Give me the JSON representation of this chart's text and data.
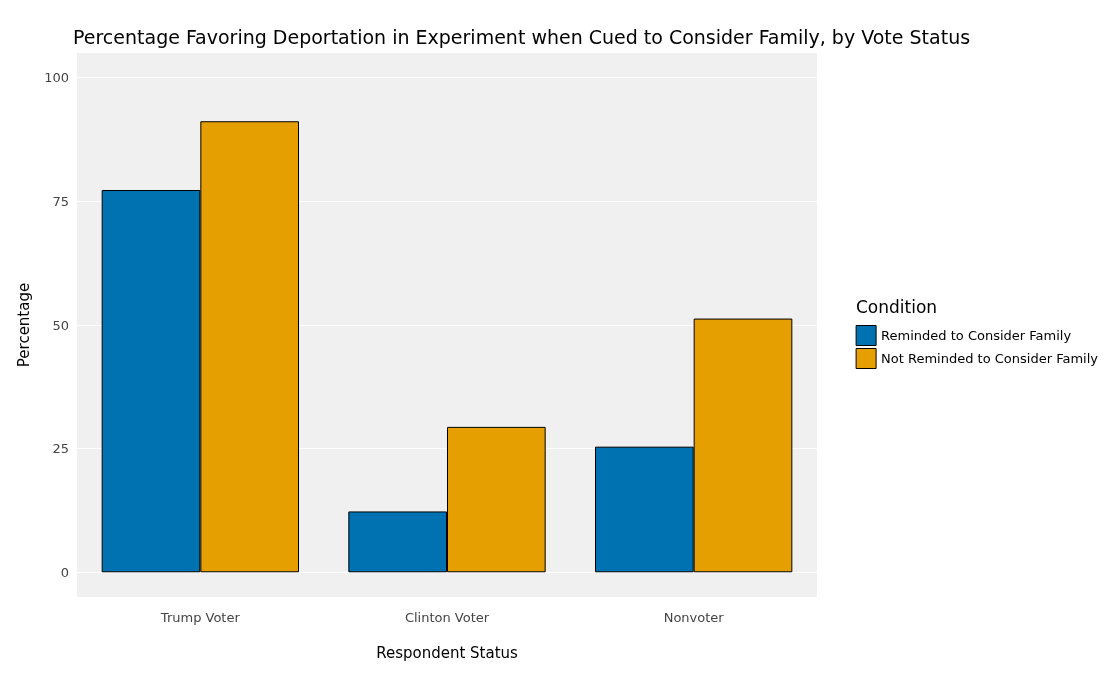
{
  "chart_data": {
    "type": "bar",
    "title": "Percentage Favoring Deportation in Experiment when Cued to Consider Family, by Vote Status",
    "xlabel": "Respondent Status",
    "ylabel": "Percentage",
    "legend_title": "Condition",
    "categories": [
      "Trump Voter",
      "Clinton Voter",
      "Nonvoter"
    ],
    "series": [
      {
        "name": "Reminded to Consider Family",
        "color": "#0072b2",
        "values": [
          77.3,
          12.3,
          25.4
        ]
      },
      {
        "name": "Not Reminded to Consider Family",
        "color": "#e69f00",
        "values": [
          91.2,
          29.4,
          51.3
        ]
      }
    ],
    "ylim": [
      -5,
      105
    ],
    "yticks": [
      0,
      25,
      50,
      75,
      100
    ],
    "grid": "y",
    "legend": "right"
  }
}
